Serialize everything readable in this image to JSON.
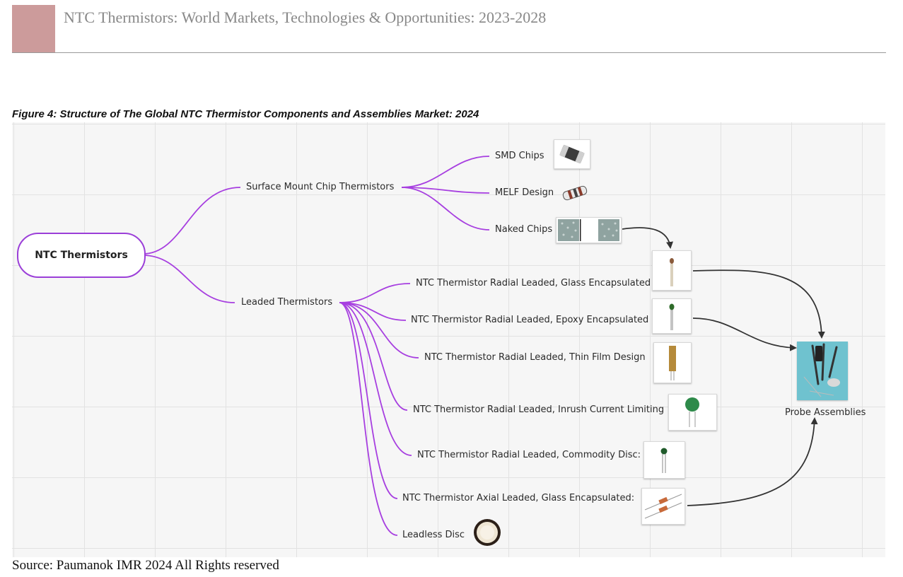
{
  "header": {
    "title": "NTC Thermistors: World Markets, Technologies & Opportunities: 2023-2028",
    "block_color": "#cc9b9b"
  },
  "figure": {
    "caption": "Figure 4: Structure of The Global NTC Thermistor Components and Assemblies Market: 2024",
    "root": "NTC Thermistors",
    "branch_color": "#9b3fd8",
    "surface_mount": {
      "label": "Surface Mount Chip Thermistors",
      "children": [
        "SMD Chips",
        "MELF Design",
        "Naked Chips"
      ]
    },
    "leaded": {
      "label": "Leaded Thermistors",
      "children": [
        "NTC Thermistor Radial Leaded, Glass Encapsulated",
        "NTC Thermistor Radial Leaded, Epoxy Encapsulated",
        "NTC Thermistor Radial Leaded, Thin Film Design",
        "NTC Thermistor Radial Leaded, Inrush Current Limiting",
        "NTC Thermistor Radial Leaded, Commodity Disc:",
        "NTC Thermistor Axial Leaded, Glass Encapsulated:",
        "Leadless Disc"
      ]
    },
    "probe": {
      "label": "Probe Assemblies"
    }
  },
  "source": "Source: Paumanok IMR 2024 All Rights reserved"
}
